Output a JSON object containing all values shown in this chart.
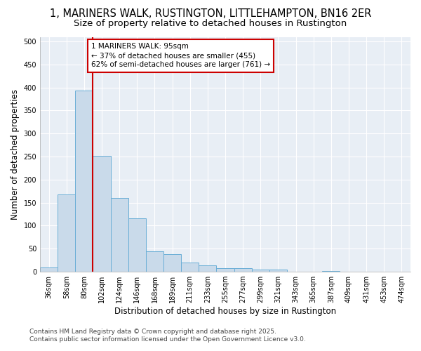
{
  "title_line1": "1, MARINERS WALK, RUSTINGTON, LITTLEHAMPTON, BN16 2ER",
  "title_line2": "Size of property relative to detached houses in Rustington",
  "xlabel": "Distribution of detached houses by size in Rustington",
  "ylabel": "Number of detached properties",
  "bar_color": "#c9daea",
  "bar_edge_color": "#6aaed6",
  "plot_bg_color": "#e8eef5",
  "fig_bg_color": "#ffffff",
  "bins": [
    "36sqm",
    "58sqm",
    "80sqm",
    "102sqm",
    "124sqm",
    "146sqm",
    "168sqm",
    "189sqm",
    "211sqm",
    "233sqm",
    "255sqm",
    "277sqm",
    "299sqm",
    "321sqm",
    "343sqm",
    "365sqm",
    "387sqm",
    "409sqm",
    "431sqm",
    "453sqm",
    "474sqm"
  ],
  "values": [
    10,
    168,
    393,
    252,
    160,
    116,
    44,
    38,
    20,
    14,
    8,
    7,
    5,
    4,
    0,
    0,
    1,
    0,
    0,
    0,
    0
  ],
  "property_label": "1 MARINERS WALK: 95sqm",
  "annotation_smaller": "← 37% of detached houses are smaller (455)",
  "annotation_larger": "62% of semi-detached houses are larger (761) →",
  "vline_color": "#cc0000",
  "vline_x_index": 2.5,
  "annotation_box_color": "#cc0000",
  "ylim": [
    0,
    510
  ],
  "yticks": [
    0,
    50,
    100,
    150,
    200,
    250,
    300,
    350,
    400,
    450,
    500
  ],
  "footnote_line1": "Contains HM Land Registry data © Crown copyright and database right 2025.",
  "footnote_line2": "Contains public sector information licensed under the Open Government Licence v3.0.",
  "title_fontsize": 10.5,
  "subtitle_fontsize": 9.5,
  "axis_label_fontsize": 8.5,
  "tick_fontsize": 7,
  "annotation_fontsize": 7.5,
  "footnote_fontsize": 6.5
}
